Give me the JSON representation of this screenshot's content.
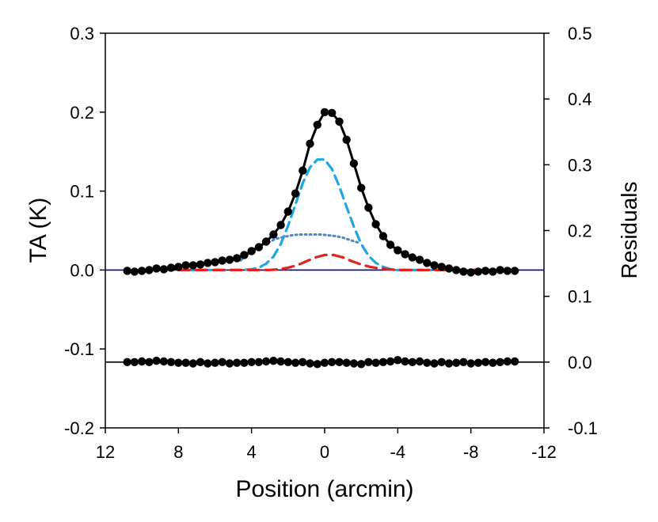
{
  "chart_data": {
    "type": "line",
    "title": "",
    "xlabel": "Position (arcmin)",
    "ylabel": "TA (K)",
    "y2label": "Residuals",
    "xlim": [
      12,
      -12
    ],
    "ylim": [
      -0.2,
      0.3
    ],
    "y2lim": [
      -0.1,
      0.5
    ],
    "x_ticks": [
      "12",
      "8",
      "4",
      "0",
      "-4",
      "-8",
      "-12"
    ],
    "x_tick_values": [
      12,
      8,
      4,
      0,
      -4,
      -8,
      -12
    ],
    "y_ticks": [
      "0.3",
      "0.2",
      "0.1",
      "0.0",
      "-0.1",
      "-0.2"
    ],
    "y_tick_values": [
      0.3,
      0.2,
      0.1,
      0.0,
      -0.1,
      -0.2
    ],
    "y2_ticks": [
      "0.5",
      "0.4",
      "0.3",
      "0.2",
      "0.1",
      "0.0",
      "-0.1"
    ],
    "y2_tick_values": [
      0.5,
      0.4,
      0.3,
      0.2,
      0.1,
      0.0,
      -0.1
    ],
    "grid": false,
    "legend": "none",
    "series": [
      {
        "style": "black-line-markers",
        "color": "#000000",
        "x": [
          10.8,
          10.4,
          10.0,
          9.6,
          9.2,
          8.8,
          8.4,
          8.0,
          7.6,
          7.2,
          6.8,
          6.4,
          6.0,
          5.6,
          5.2,
          4.8,
          4.4,
          4.0,
          3.6,
          3.2,
          2.8,
          2.4,
          2.0,
          1.6,
          1.2,
          0.8,
          0.4,
          0.0,
          -0.4,
          -0.8,
          -1.2,
          -1.6,
          -2.0,
          -2.4,
          -2.8,
          -3.2,
          -3.6,
          -4.0,
          -4.4,
          -4.8,
          -5.2,
          -5.6,
          -6.0,
          -6.4,
          -6.8,
          -7.2,
          -7.6,
          -8.0,
          -8.4,
          -8.8,
          -9.2,
          -9.6,
          -10.0,
          -10.4
        ],
        "values": [
          -0.001,
          -0.002,
          -0.001,
          0.0,
          0.002,
          0.001,
          0.003,
          0.004,
          0.006,
          0.006,
          0.007,
          0.009,
          0.01,
          0.012,
          0.013,
          0.015,
          0.019,
          0.024,
          0.029,
          0.036,
          0.045,
          0.057,
          0.074,
          0.097,
          0.126,
          0.16,
          0.184,
          0.2,
          0.199,
          0.188,
          0.165,
          0.135,
          0.104,
          0.079,
          0.058,
          0.043,
          0.032,
          0.025,
          0.02,
          0.016,
          0.013,
          0.009,
          0.006,
          0.004,
          0.002,
          0.0,
          -0.002,
          -0.003,
          -0.002,
          -0.001,
          -0.002,
          0.0,
          -0.001,
          -0.001
        ]
      },
      {
        "style": "cyan-dashed",
        "color": "#1ea7e1",
        "x": [
          7.6,
          7.0,
          6.4,
          5.8,
          5.2,
          4.6,
          4.0,
          3.6,
          3.2,
          2.8,
          2.4,
          2.0,
          1.6,
          1.2,
          0.8,
          0.4,
          0.0,
          -0.4,
          -0.8,
          -1.2,
          -1.6,
          -2.0,
          -2.4,
          -2.8,
          -3.2,
          -3.6,
          -4.0,
          -4.6,
          -5.2,
          -5.8
        ],
        "values": [
          0.0,
          0.0,
          0.0,
          0.0,
          0.0,
          0.0,
          0.001,
          0.003,
          0.008,
          0.017,
          0.033,
          0.056,
          0.083,
          0.11,
          0.13,
          0.14,
          0.14,
          0.128,
          0.106,
          0.08,
          0.055,
          0.033,
          0.018,
          0.009,
          0.004,
          0.001,
          0.0,
          0.0,
          0.0,
          0.0
        ]
      },
      {
        "style": "blue-dotted",
        "color": "#4f86c6",
        "x": [
          4.6,
          4.2,
          3.8,
          3.4,
          3.0,
          2.6,
          2.2,
          1.8,
          1.4,
          1.0,
          0.6,
          0.2,
          -0.2,
          -0.6,
          -1.0,
          -1.4,
          -1.8
        ],
        "values": [
          0.012,
          0.02,
          0.027,
          0.032,
          0.036,
          0.04,
          0.042,
          0.044,
          0.045,
          0.045,
          0.045,
          0.045,
          0.044,
          0.043,
          0.041,
          0.038,
          0.035
        ]
      },
      {
        "style": "red-dashed",
        "color": "#e3221f",
        "x": [
          8.0,
          7.0,
          6.0,
          5.0,
          4.0,
          3.0,
          2.5,
          2.0,
          1.5,
          1.0,
          0.5,
          0.0,
          -0.5,
          -1.0,
          -1.5,
          -2.0,
          -2.5,
          -3.0,
          -3.5,
          -4.0,
          -5.0,
          -6.0,
          -7.0,
          -8.0,
          -9.0
        ],
        "values": [
          0.0,
          0.0,
          0.0,
          0.0,
          0.0,
          0.0,
          0.001,
          0.003,
          0.006,
          0.011,
          0.016,
          0.019,
          0.019,
          0.016,
          0.011,
          0.007,
          0.004,
          0.002,
          0.001,
          0.0,
          0.0,
          0.0,
          0.0,
          0.0,
          0.0
        ]
      }
    ],
    "residuals": {
      "axis": "right",
      "style": "black-line-markers",
      "color": "#000000",
      "x": [
        10.8,
        10.4,
        10.0,
        9.6,
        9.2,
        8.8,
        8.4,
        8.0,
        7.6,
        7.2,
        6.8,
        6.4,
        6.0,
        5.6,
        5.2,
        4.8,
        4.4,
        4.0,
        3.6,
        3.2,
        2.8,
        2.4,
        2.0,
        1.6,
        1.2,
        0.8,
        0.4,
        0.0,
        -0.4,
        -0.8,
        -1.2,
        -1.6,
        -2.0,
        -2.4,
        -2.8,
        -3.2,
        -3.6,
        -4.0,
        -4.4,
        -4.8,
        -5.2,
        -5.6,
        -6.0,
        -6.4,
        -6.8,
        -7.2,
        -7.6,
        -8.0,
        -8.4,
        -8.8,
        -9.2,
        -9.6,
        -10.0,
        -10.4
      ],
      "values": [
        0.0,
        0.0,
        0.001,
        0.0,
        0.002,
        0.001,
        0.0,
        -0.001,
        -0.001,
        -0.002,
        0.0,
        -0.002,
        -0.001,
        0.0,
        -0.002,
        -0.001,
        -0.001,
        0.0,
        0.0,
        0.001,
        0.002,
        0.001,
        0.0,
        -0.001,
        0.0,
        -0.002,
        -0.003,
        -0.001,
        0.0,
        0.0,
        -0.001,
        -0.002,
        -0.003,
        0.0,
        -0.001,
        0.0,
        0.001,
        0.003,
        0.001,
        0.0,
        0.001,
        -0.001,
        -0.002,
        0.0,
        -0.002,
        -0.001,
        0.0,
        -0.002,
        -0.001,
        0.0,
        -0.001,
        0.0,
        0.001,
        0.001
      ]
    },
    "reference_lines": [
      {
        "axis": "left",
        "y": 0.0,
        "color": "#000080"
      },
      {
        "axis": "right",
        "y": 0.0,
        "color": "#000000"
      }
    ]
  }
}
